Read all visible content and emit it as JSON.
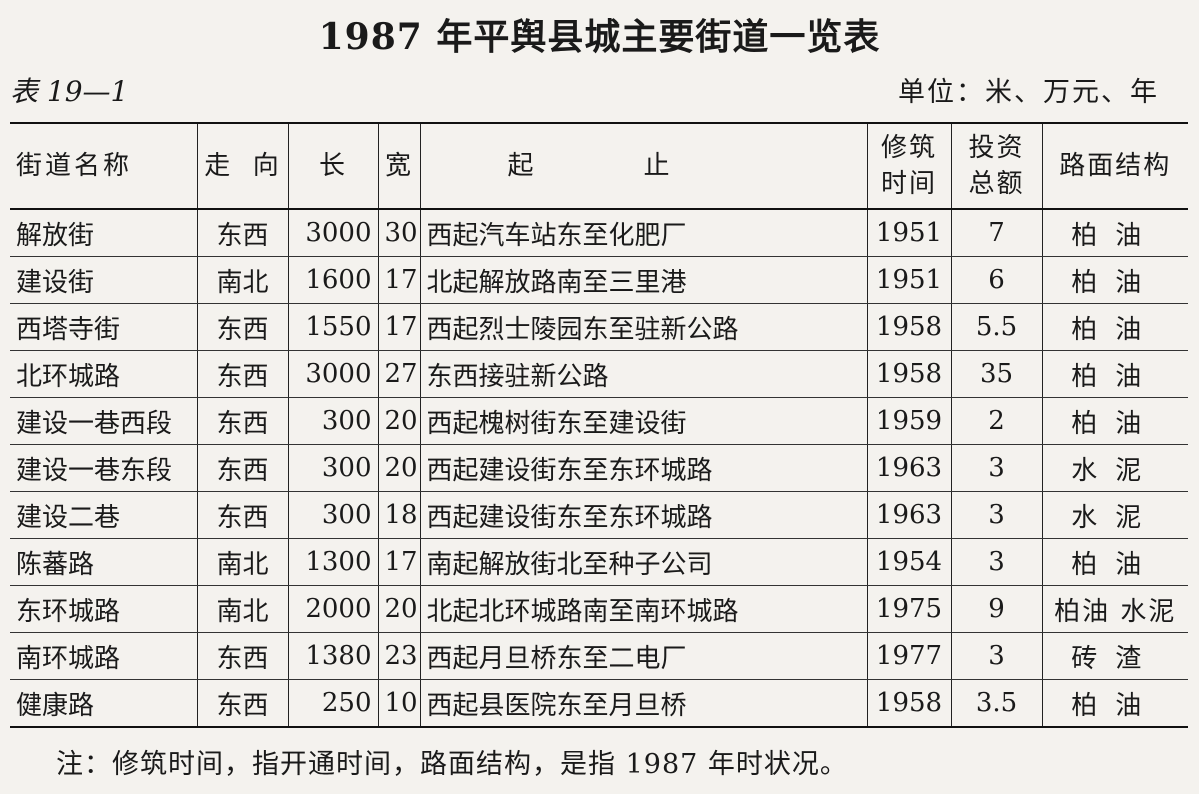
{
  "title": "1987 年平舆县城主要街道一览表",
  "table_id": "表 19—1",
  "unit": "单位：米、万元、年",
  "headers": {
    "name": "街道名称",
    "direction": "走  向",
    "length": "长",
    "width": "宽",
    "route": "起止",
    "year_line1": "修筑",
    "year_line2": "时间",
    "invest_line1": "投资",
    "invest_line2": "总额",
    "surface": "路面结构"
  },
  "rows": [
    {
      "name": "解放街",
      "direction": "东西",
      "length": "3000",
      "width": "30",
      "route": "西起汽车站东至化肥厂",
      "year": "1951",
      "investment": "7",
      "surface": "柏油"
    },
    {
      "name": "建设街",
      "direction": "南北",
      "length": "1600",
      "width": "17",
      "route": "北起解放路南至三里港",
      "year": "1951",
      "investment": "6",
      "surface": "柏油"
    },
    {
      "name": "西塔寺街",
      "direction": "东西",
      "length": "1550",
      "width": "17",
      "route": "西起烈士陵园东至驻新公路",
      "year": "1958",
      "investment": "5.5",
      "surface": "柏油"
    },
    {
      "name": "北环城路",
      "direction": "东西",
      "length": "3000",
      "width": "27",
      "route": "东西接驻新公路",
      "year": "1958",
      "investment": "35",
      "surface": "柏油"
    },
    {
      "name": "建设一巷西段",
      "direction": "东西",
      "length": "300",
      "width": "20",
      "route": "西起槐树街东至建设街",
      "year": "1959",
      "investment": "2",
      "surface": "柏油"
    },
    {
      "name": "建设一巷东段",
      "direction": "东西",
      "length": "300",
      "width": "20",
      "route": "西起建设街东至东环城路",
      "year": "1963",
      "investment": "3",
      "surface": "水泥"
    },
    {
      "name": "建设二巷",
      "direction": "东西",
      "length": "300",
      "width": "18",
      "route": "西起建设街东至东环城路",
      "year": "1963",
      "investment": "3",
      "surface": "水泥"
    },
    {
      "name": "陈蕃路",
      "direction": "南北",
      "length": "1300",
      "width": "17",
      "route": "南起解放街北至种子公司",
      "year": "1954",
      "investment": "3",
      "surface": "柏油"
    },
    {
      "name": "东环城路",
      "direction": "南北",
      "length": "2000",
      "width": "20",
      "route": "北起北环城路南至南环城路",
      "year": "1975",
      "investment": "9",
      "surface": "柏油 水泥"
    },
    {
      "name": "南环城路",
      "direction": "东西",
      "length": "1380",
      "width": "23",
      "route": "西起月旦桥东至二电厂",
      "year": "1977",
      "investment": "3",
      "surface": "砖渣"
    },
    {
      "name": "健康路",
      "direction": "东西",
      "length": "250",
      "width": "10",
      "route": "西起县医院东至月旦桥",
      "year": "1958",
      "investment": "3.5",
      "surface": "柏油"
    }
  ],
  "note": "注：修筑时间，指开通时间，路面结构，是指 1987 年时状况。"
}
